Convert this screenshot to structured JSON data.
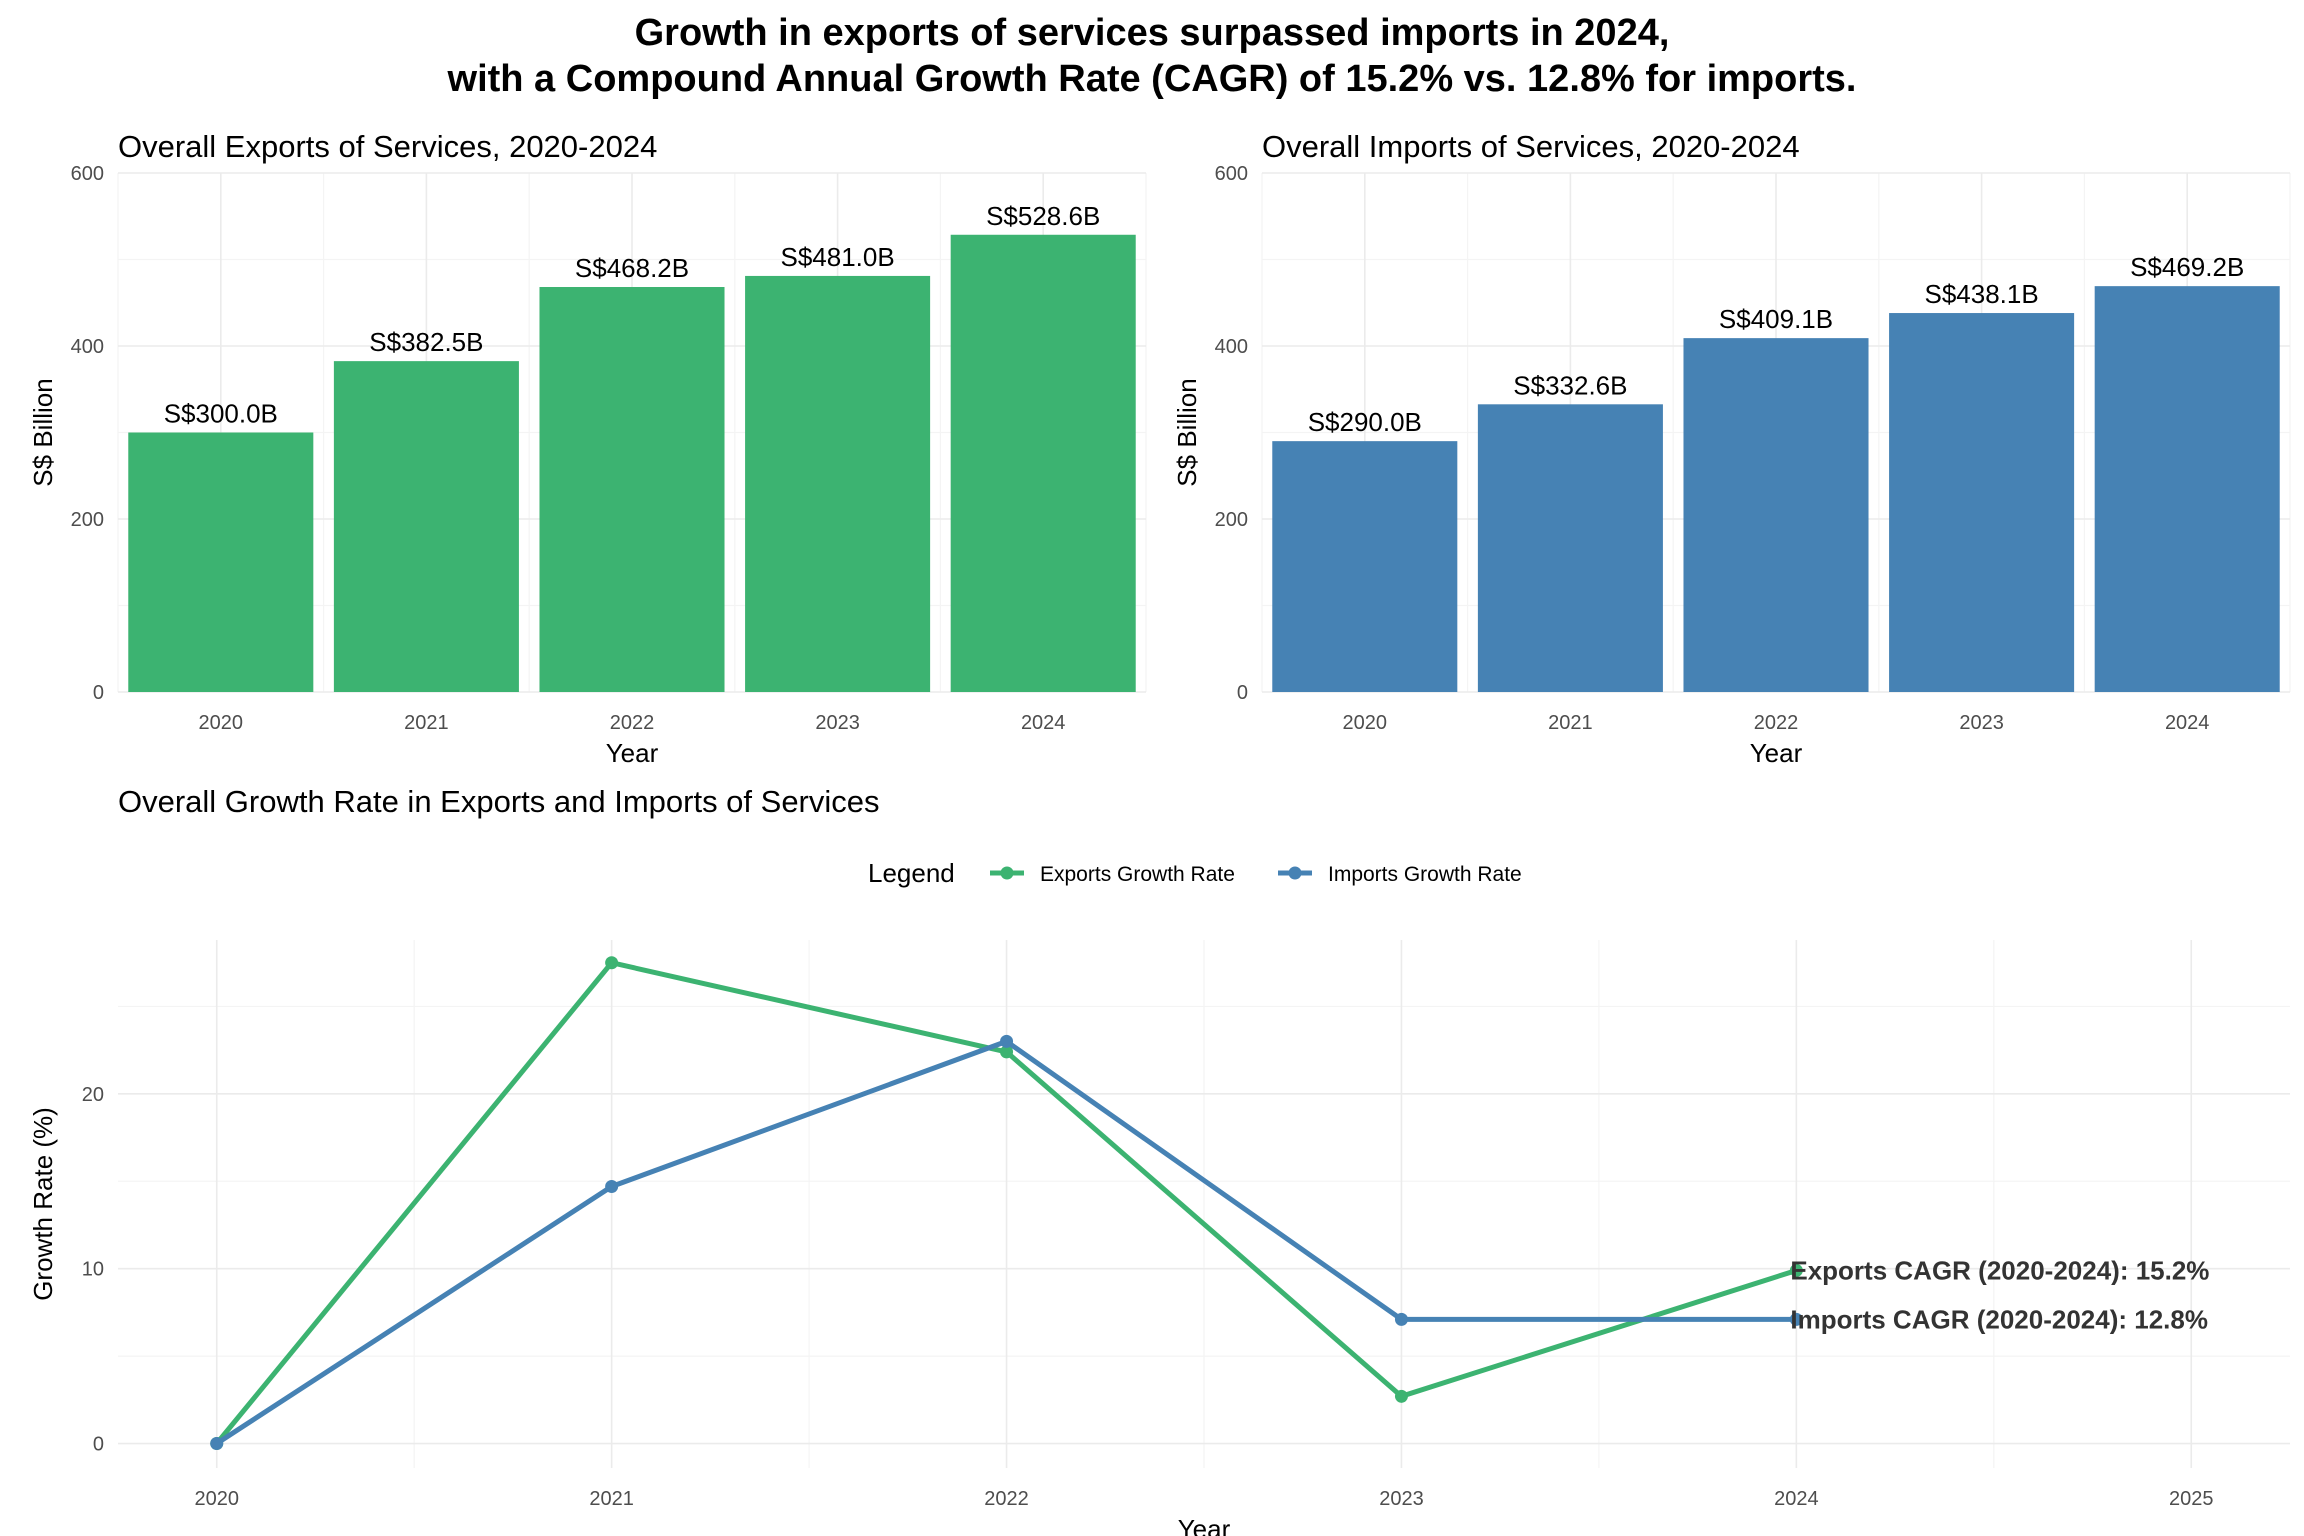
{
  "title": {
    "line1": "Growth in exports of services surpassed imports in 2024,",
    "line2": "with a Compound Annual Growth Rate (CAGR) of 15.2% vs. 12.8% for imports."
  },
  "colors": {
    "exports": "#3cb371",
    "imports": "#4682b4"
  },
  "chart_data": [
    {
      "type": "bar",
      "title": "Overall Exports of Services, 2020-2024",
      "xlabel": "Year",
      "ylabel": "S$ Billion",
      "categories": [
        "2020",
        "2021",
        "2022",
        "2023",
        "2024"
      ],
      "values": [
        300.0,
        382.5,
        468.2,
        481.0,
        528.6
      ],
      "data_labels": [
        "S$300.0B",
        "S$382.5B",
        "S$468.2B",
        "S$481.0B",
        "S$528.6B"
      ],
      "ylim": [
        0,
        600
      ],
      "yticks": [
        0,
        200,
        400,
        600
      ],
      "color": "#3cb371",
      "grid": true
    },
    {
      "type": "bar",
      "title": "Overall Imports of Services, 2020-2024",
      "xlabel": "Year",
      "ylabel": "S$ Billion",
      "categories": [
        "2020",
        "2021",
        "2022",
        "2023",
        "2024"
      ],
      "values": [
        290.0,
        332.6,
        409.1,
        438.1,
        469.2
      ],
      "data_labels": [
        "S$290.0B",
        "S$332.6B",
        "S$409.1B",
        "S$438.1B",
        "S$469.2B"
      ],
      "ylim": [
        0,
        600
      ],
      "yticks": [
        0,
        200,
        400,
        600
      ],
      "color": "#4682b4",
      "grid": true
    },
    {
      "type": "line",
      "title": "Overall Growth Rate in Exports and Imports of Services",
      "xlabel": "Year",
      "ylabel": "Growth Rate (%)",
      "x": [
        2020,
        2021,
        2022,
        2023,
        2024
      ],
      "xticks": [
        2020,
        2021,
        2022,
        2023,
        2024,
        2025
      ],
      "yticks": [
        0,
        10,
        20
      ],
      "xlim": [
        2019.75,
        2025.25
      ],
      "ylim": [
        -1.4,
        28.8
      ],
      "series": [
        {
          "name": "Exports Growth Rate",
          "values": [
            0,
            27.5,
            22.4,
            2.7,
            9.9
          ],
          "color": "#3cb371"
        },
        {
          "name": "Imports Growth Rate",
          "values": [
            0,
            14.7,
            23.0,
            7.1,
            7.1
          ],
          "color": "#4682b4"
        }
      ],
      "legend": {
        "title": "Legend",
        "position": "top"
      },
      "annotations": [
        {
          "text": "Exports CAGR (2020-2024): 15.2%",
          "x": 2024,
          "y": 9.9
        },
        {
          "text": "Imports CAGR (2020-2024): 12.8%",
          "x": 2024,
          "y": 7.1
        }
      ],
      "grid": true
    }
  ]
}
